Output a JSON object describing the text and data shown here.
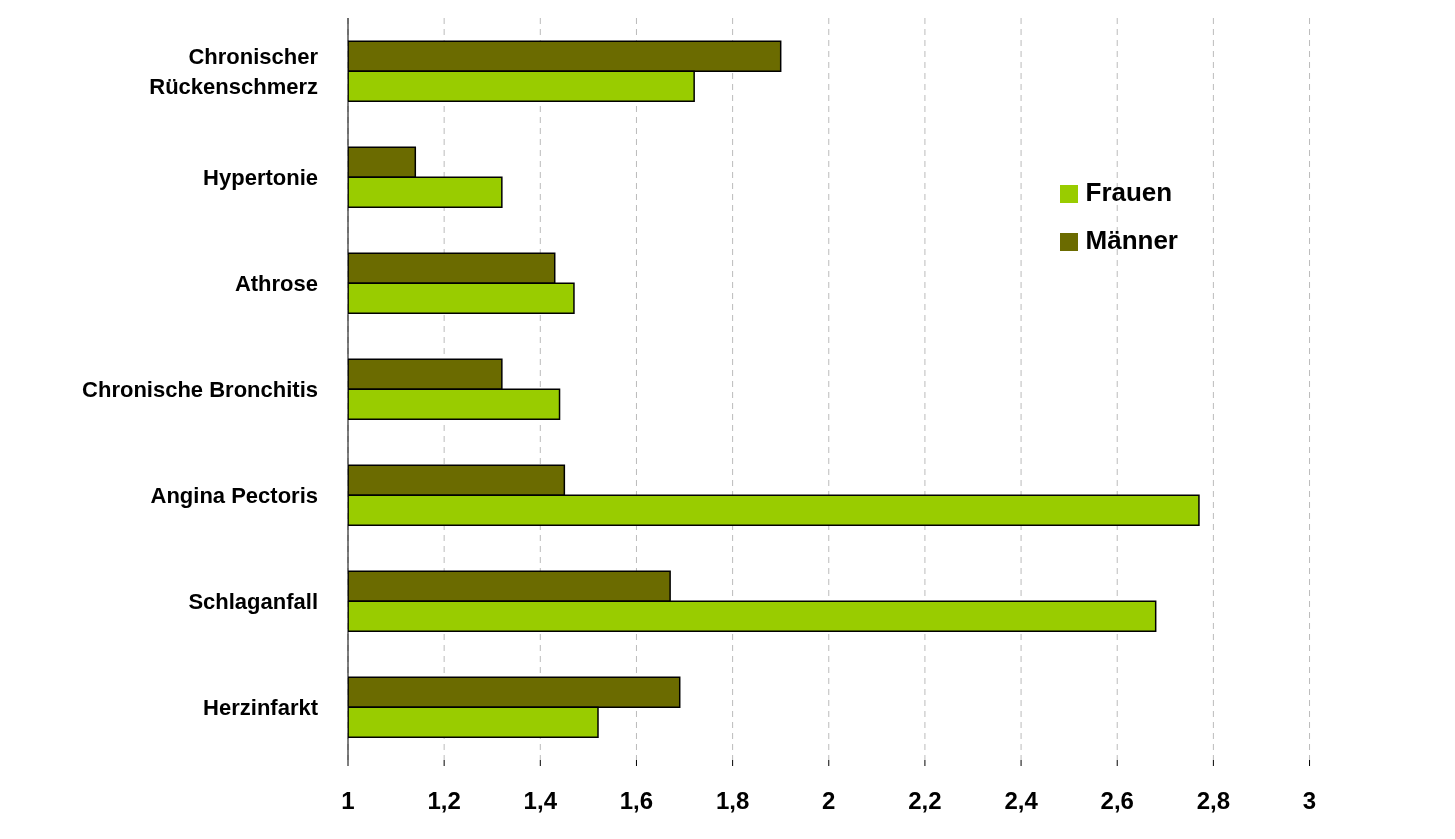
{
  "chart_data": {
    "type": "bar",
    "orientation": "horizontal",
    "categories": [
      "Chronischer Rückenschmerz",
      "Hypertonie",
      "Athrose",
      "Chronische Bronchitis",
      "Angina Pectoris",
      "Schlaganfall",
      "Herzinfarkt"
    ],
    "series": [
      {
        "name": "Männer",
        "color": "#6b6b00",
        "values": [
          1.9,
          1.14,
          1.43,
          1.32,
          1.45,
          1.67,
          1.69
        ]
      },
      {
        "name": "Frauen",
        "color": "#99cc00",
        "values": [
          1.72,
          1.32,
          1.47,
          1.44,
          2.77,
          2.68,
          1.52
        ]
      }
    ],
    "xlim": [
      1,
      3
    ],
    "xticks": [
      1,
      {
        "value": 1.2,
        "label": "1,2"
      },
      {
        "value": 1.4,
        "label": "1,4"
      },
      {
        "value": 1.6,
        "label": "1,6"
      },
      {
        "value": 1.8,
        "label": "1,8"
      },
      2,
      {
        "value": 2.2,
        "label": "2,2"
      },
      {
        "value": 2.4,
        "label": "2,4"
      },
      {
        "value": 2.6,
        "label": "2,6"
      },
      {
        "value": 2.8,
        "label": "2,8"
      },
      3
    ],
    "grid": "x",
    "legend": "top right"
  }
}
